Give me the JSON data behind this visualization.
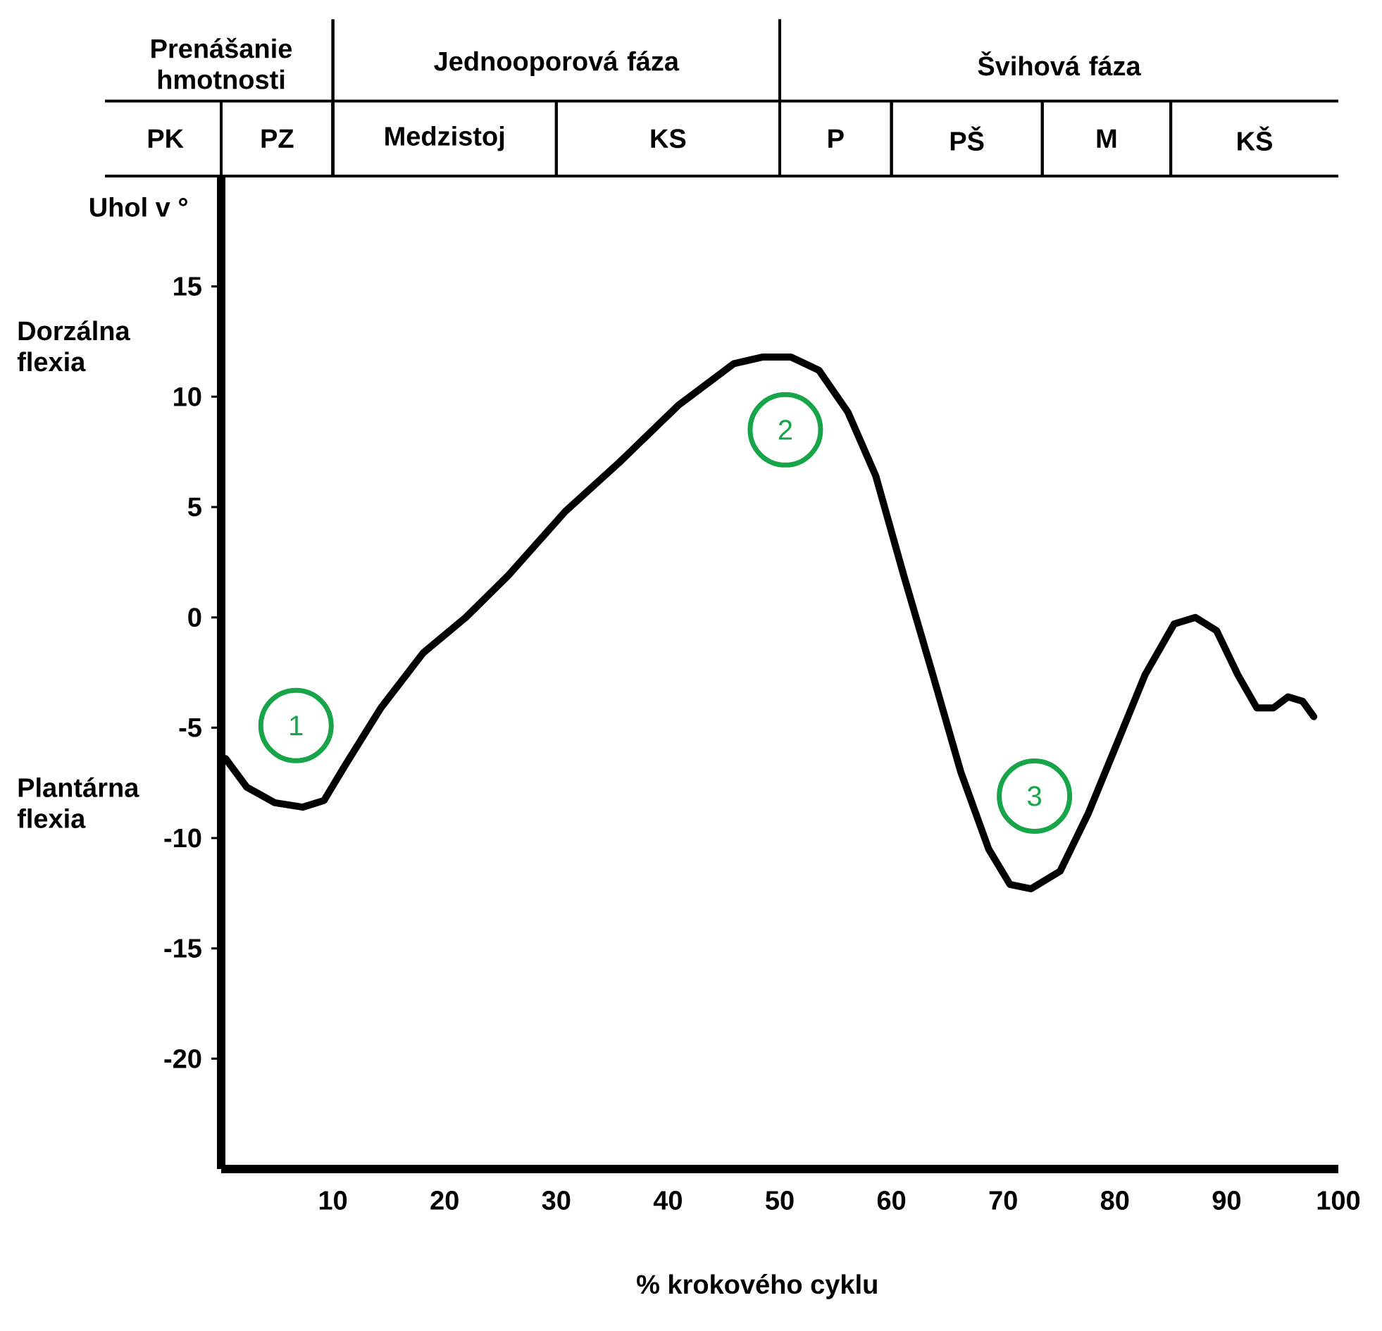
{
  "chart_data": {
    "type": "line",
    "xlabel": "% krokového cyklu",
    "ylabel": "Uhol v °",
    "xlim": [
      0,
      100
    ],
    "ylim": [
      -25,
      20
    ],
    "xticks": [
      10,
      20,
      30,
      40,
      50,
      60,
      70,
      80,
      90,
      100
    ],
    "yticks": [
      -20,
      -15,
      -10,
      -5,
      0,
      5,
      10,
      15
    ],
    "grid": false,
    "marker": "none",
    "line_style": "solid",
    "series": [
      {
        "color": "#000000",
        "x": [
          0.4,
          2.3,
          4.8,
          7.3,
          9.2,
          11.1,
          14.3,
          18.1,
          21.9,
          25.7,
          30.8,
          35.8,
          40.9,
          45.9,
          48.5,
          51,
          53.5,
          56.1,
          58.6,
          61.1,
          63.7,
          66.2,
          68.7,
          70.6,
          72.5,
          75.1,
          77.6,
          80.2,
          82.7,
          85.3,
          87.2,
          89.1,
          91,
          92.7,
          94.2,
          95.5,
          96.8,
          97.8
        ],
        "values": [
          -6.4,
          -7.7,
          -8.4,
          -8.6,
          -8.3,
          -6.7,
          -4.1,
          -1.6,
          0,
          1.9,
          4.8,
          7.1,
          9.6,
          11.5,
          11.8,
          11.8,
          11.2,
          9.3,
          6.4,
          1.9,
          -2.6,
          -7.0,
          -10.5,
          -12.1,
          -12.3,
          -11.5,
          -8.9,
          -5.7,
          -2.6,
          -0.3,
          0,
          -0.6,
          -2.6,
          -4.1,
          -4.1,
          -3.6,
          -3.8,
          -4.5
        ]
      }
    ],
    "annotations": [
      "Dorzálna flexia",
      "Plantárna flexia",
      "Prenášanie hmotnosti",
      "Jednooporová fáza",
      "Švihová fáza",
      "PK",
      "PZ",
      "Medzistoj",
      "KS",
      "P",
      "PŠ",
      "M",
      "KŠ",
      "1",
      "2",
      "3"
    ]
  }
}
